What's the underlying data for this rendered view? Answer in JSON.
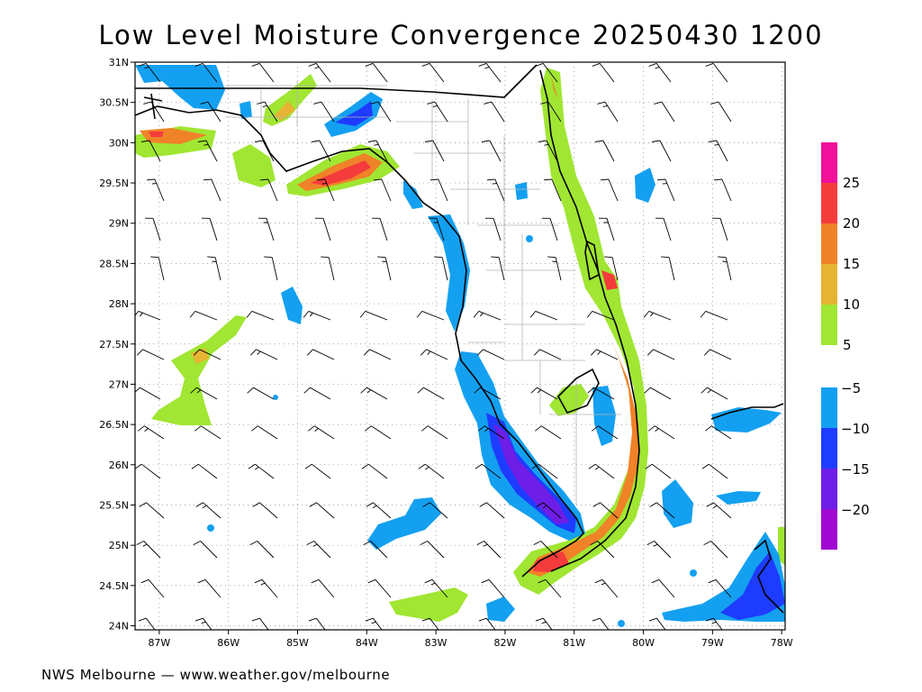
{
  "title": "Low Level Moisture Convergence 20250430 1200",
  "footer": "NWS Melbourne — www.weather.gov/melbourne",
  "lat_labels": [
    "31N",
    "30.5N",
    "30N",
    "29.5N",
    "29N",
    "28.5N",
    "28N",
    "27.5N",
    "27N",
    "26.5N",
    "26N",
    "25.5N",
    "25N",
    "24.5N",
    "24N"
  ],
  "lon_labels": [
    "87W",
    "86W",
    "85W",
    "84W",
    "83W",
    "82W",
    "81W",
    "80W",
    "79W",
    "78W"
  ],
  "colorbar": {
    "positive_labels": [
      "25",
      "20",
      "15",
      "10",
      "5"
    ],
    "negative_labels": [
      "−5",
      "−10",
      "−15",
      "−20"
    ],
    "positive_colors": [
      "#f0109a",
      "#f53c3c",
      "#f08228",
      "#e6b432",
      "#a0e632"
    ],
    "negative_colors": [
      "#14a0f0",
      "#1e3cff",
      "#6e1ee6",
      "#a00ad2"
    ]
  },
  "map_colors": {
    "c5": "#a0e632",
    "c10": "#e6b432",
    "c15": "#f08228",
    "c20": "#f53c3c",
    "n5": "#14a0f0",
    "n10": "#1e3cff",
    "n15": "#6e1ee6",
    "n20": "#a00ad2"
  }
}
